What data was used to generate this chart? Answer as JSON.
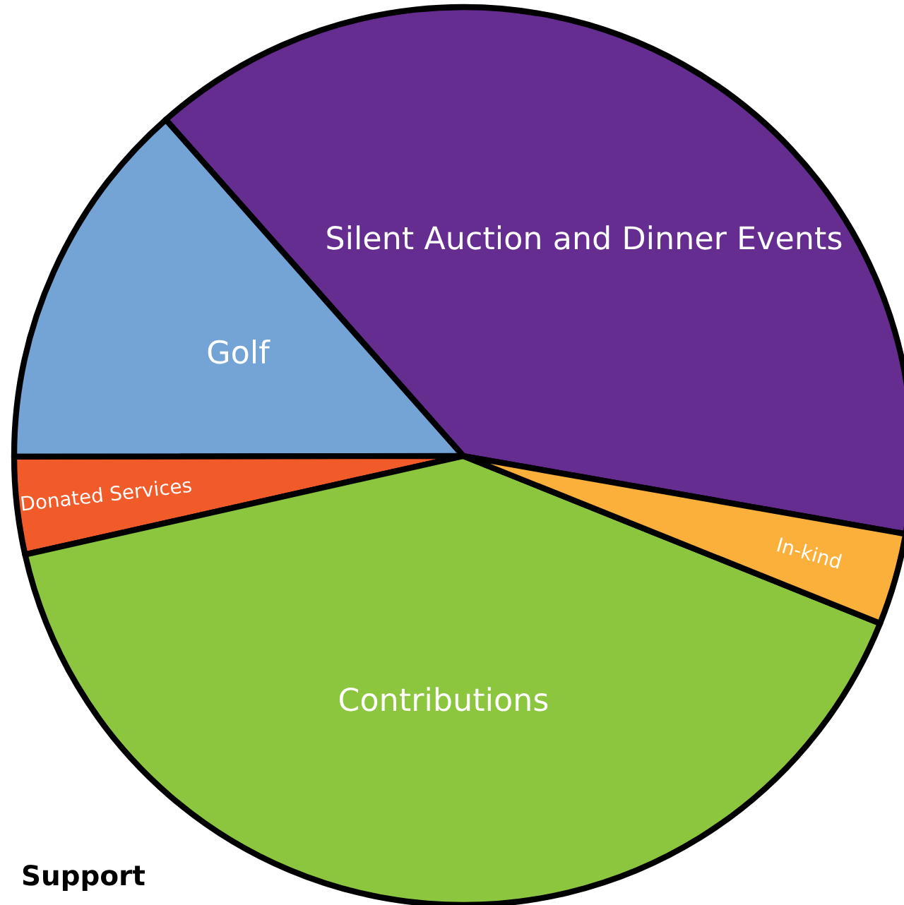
{
  "chart_data": {
    "type": "pie",
    "title": "Support",
    "categories": [
      "Silent Auction and Dinner Events",
      "Golf",
      "Donated Services",
      "Contributions",
      "In-kind"
    ],
    "values": [
      39.3,
      13.5,
      3.5,
      40.4,
      3.3
    ],
    "colors": [
      "#662d91",
      "#74a3d6",
      "#f15a29",
      "#8cc63f",
      "#fbb03b"
    ],
    "legend": false
  }
}
